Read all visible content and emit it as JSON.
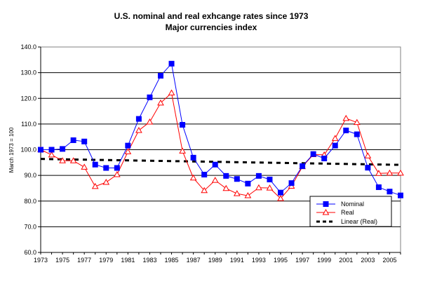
{
  "chart_data": {
    "type": "line",
    "title": "U.S. nominal and real exhcange rates since 1973",
    "subtitle": "Major currencies index",
    "xlabel": "",
    "ylabel": "March 1973 = 100",
    "xlim": [
      1973,
      2006
    ],
    "ylim": [
      60,
      140
    ],
    "y_ticks": [
      60,
      70,
      80,
      90,
      100,
      110,
      120,
      130,
      140
    ],
    "y_tick_labels": [
      "60.0",
      "70.0",
      "80.0",
      "90.0",
      "100.0",
      "110.0",
      "120.0",
      "130.0",
      "140.0"
    ],
    "x_ticks": [
      1973,
      1975,
      1977,
      1979,
      1981,
      1983,
      1985,
      1987,
      1989,
      1991,
      1993,
      1995,
      1997,
      1999,
      2001,
      2003,
      2005
    ],
    "x_tick_labels": [
      "1973",
      "1975",
      "1977",
      "1979",
      "1981",
      "1983",
      "1985",
      "1987",
      "1989",
      "1991",
      "1993",
      "1995",
      "1997",
      "1999",
      "2001",
      "2003",
      "2005"
    ],
    "grid": "horizontal",
    "legend_position": "bottom-right",
    "x": [
      1973,
      1974,
      1975,
      1976,
      1977,
      1978,
      1979,
      1980,
      1981,
      1982,
      1983,
      1984,
      1985,
      1986,
      1987,
      1988,
      1989,
      1990,
      1991,
      1992,
      1993,
      1994,
      1995,
      1996,
      1997,
      1998,
      1999,
      2000,
      2001,
      2002,
      2003,
      2004,
      2005,
      2006
    ],
    "series": [
      {
        "name": "Nominal",
        "color": "#0000ff",
        "marker": "square",
        "values": [
          100.0,
          100.0,
          100.3,
          103.7,
          103.2,
          94.2,
          92.9,
          92.9,
          101.6,
          112.0,
          120.4,
          128.8,
          133.5,
          109.7,
          96.9,
          90.3,
          94.2,
          89.8,
          88.6,
          86.8,
          89.8,
          88.4,
          83.3,
          87.0,
          93.6,
          98.3,
          96.6,
          101.6,
          107.5,
          106.0,
          93.0,
          85.4,
          83.7,
          82.2
        ]
      },
      {
        "name": "Real",
        "color": "#ff0000",
        "marker": "triangle-open",
        "values": [
          100.0,
          98.0,
          95.7,
          95.7,
          93.2,
          85.7,
          87.3,
          90.3,
          99.2,
          107.5,
          110.8,
          118.2,
          122.1,
          99.5,
          89.0,
          84.1,
          88.1,
          84.9,
          82.9,
          82.1,
          85.2,
          85.1,
          81.0,
          85.8,
          93.4,
          98.1,
          98.0,
          104.4,
          112.2,
          110.6,
          97.6,
          90.8,
          90.9,
          90.9
        ]
      }
    ],
    "trendline": {
      "name": "Linear (Real)",
      "type": "linear",
      "color": "#000000",
      "style": "dashed",
      "start": [
        1973,
        96.4
      ],
      "end": [
        2006,
        94.1
      ]
    }
  }
}
